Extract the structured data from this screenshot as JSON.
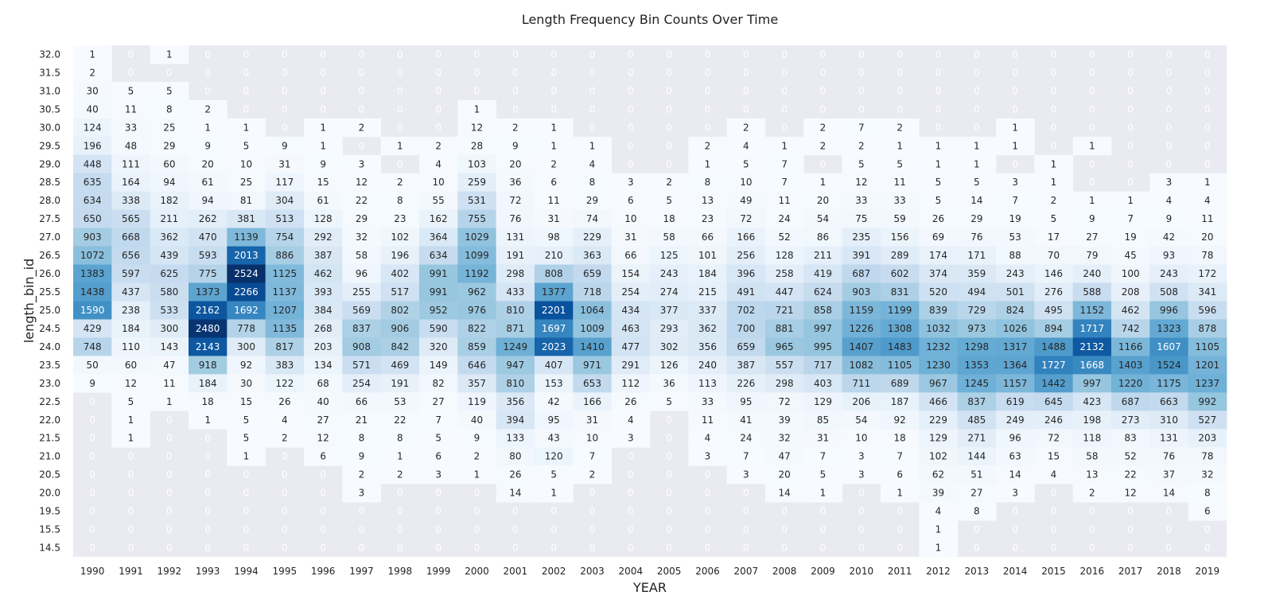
{
  "chart_data": {
    "type": "heatmap",
    "title": "Length Frequency Bin Counts Over Time",
    "xlabel": "YEAR",
    "ylabel": "length_bin_id",
    "colormap": "Blues",
    "vmin": 0,
    "vmax": 2524,
    "colors": {
      "background": "#eaeaf2",
      "low": "#f7fbff",
      "high": "#08306b",
      "text_dark": "#262626",
      "text_light": "#ffffff",
      "zero_text": "#ffffff"
    },
    "x_labels": [
      "1990",
      "1991",
      "1992",
      "1993",
      "1994",
      "1995",
      "1996",
      "1997",
      "1998",
      "1999",
      "2000",
      "2001",
      "2002",
      "2003",
      "2004",
      "2005",
      "2006",
      "2007",
      "2008",
      "2009",
      "2010",
      "2011",
      "2012",
      "2013",
      "2014",
      "2015",
      "2016",
      "2017",
      "2018",
      "2019"
    ],
    "y_labels": [
      "32.0",
      "31.5",
      "31.0",
      "30.5",
      "30.0",
      "29.5",
      "29.0",
      "28.5",
      "28.0",
      "27.5",
      "27.0",
      "26.5",
      "26.0",
      "25.5",
      "25.0",
      "24.5",
      "24.0",
      "23.5",
      "23.0",
      "22.5",
      "22.0",
      "21.5",
      "21.0",
      "20.5",
      "20.0",
      "19.5",
      "15.5",
      "14.5"
    ],
    "values": [
      [
        1,
        0,
        1,
        0,
        0,
        0,
        0,
        0,
        0,
        0,
        0,
        0,
        0,
        0,
        0,
        0,
        0,
        0,
        0,
        0,
        0,
        0,
        0,
        0,
        0,
        0,
        0,
        0,
        0,
        0
      ],
      [
        2,
        0,
        0,
        0,
        0,
        0,
        0,
        0,
        0,
        0,
        0,
        0,
        0,
        0,
        0,
        0,
        0,
        0,
        0,
        0,
        0,
        0,
        0,
        0,
        0,
        0,
        0,
        0,
        0,
        0
      ],
      [
        30,
        5,
        5,
        0,
        0,
        0,
        0,
        0,
        0,
        0,
        0,
        0,
        0,
        0,
        0,
        0,
        0,
        0,
        0,
        0,
        0,
        0,
        0,
        0,
        0,
        0,
        0,
        0,
        0,
        0
      ],
      [
        40,
        11,
        8,
        2,
        0,
        0,
        0,
        0,
        0,
        0,
        1,
        0,
        0,
        0,
        0,
        0,
        0,
        0,
        0,
        0,
        0,
        0,
        0,
        0,
        0,
        0,
        0,
        0,
        0,
        0
      ],
      [
        124,
        33,
        25,
        1,
        1,
        0,
        1,
        2,
        0,
        0,
        12,
        2,
        1,
        0,
        0,
        0,
        0,
        2,
        0,
        2,
        7,
        2,
        0,
        0,
        1,
        0,
        0,
        0,
        0,
        0
      ],
      [
        196,
        48,
        29,
        9,
        5,
        9,
        1,
        0,
        1,
        2,
        28,
        9,
        1,
        1,
        0,
        0,
        2,
        4,
        1,
        2,
        2,
        1,
        1,
        1,
        1,
        0,
        1,
        0,
        0,
        0
      ],
      [
        448,
        111,
        60,
        20,
        10,
        31,
        9,
        3,
        0,
        4,
        103,
        20,
        2,
        4,
        0,
        0,
        1,
        5,
        7,
        0,
        5,
        5,
        1,
        1,
        0,
        1,
        0,
        0,
        0,
        0
      ],
      [
        635,
        164,
        94,
        61,
        25,
        117,
        15,
        12,
        2,
        10,
        259,
        36,
        6,
        8,
        3,
        2,
        8,
        10,
        7,
        1,
        12,
        11,
        5,
        5,
        3,
        1,
        0,
        0,
        3,
        1
      ],
      [
        634,
        338,
        182,
        94,
        81,
        304,
        61,
        22,
        8,
        55,
        531,
        72,
        11,
        29,
        6,
        5,
        13,
        49,
        11,
        20,
        33,
        33,
        5,
        14,
        7,
        2,
        1,
        1,
        4,
        4
      ],
      [
        650,
        565,
        211,
        262,
        381,
        513,
        128,
        29,
        23,
        162,
        755,
        76,
        31,
        74,
        10,
        18,
        23,
        72,
        24,
        54,
        75,
        59,
        26,
        29,
        19,
        5,
        9,
        7,
        9,
        11
      ],
      [
        903,
        668,
        362,
        470,
        1139,
        754,
        292,
        32,
        102,
        364,
        1029,
        131,
        98,
        229,
        31,
        58,
        66,
        166,
        52,
        86,
        235,
        156,
        69,
        76,
        53,
        17,
        27,
        19,
        42,
        20
      ],
      [
        1072,
        656,
        439,
        593,
        2013,
        886,
        387,
        58,
        196,
        634,
        1099,
        191,
        210,
        363,
        66,
        125,
        101,
        256,
        128,
        211,
        391,
        289,
        174,
        171,
        88,
        70,
        79,
        45,
        93,
        78
      ],
      [
        1383,
        597,
        625,
        775,
        2524,
        1125,
        462,
        96,
        402,
        991,
        1192,
        298,
        808,
        659,
        154,
        243,
        184,
        396,
        258,
        419,
        687,
        602,
        374,
        359,
        243,
        146,
        240,
        100,
        243,
        172
      ],
      [
        1438,
        437,
        580,
        1373,
        2266,
        1137,
        393,
        255,
        517,
        991,
        962,
        433,
        1377,
        718,
        254,
        274,
        215,
        491,
        447,
        624,
        903,
        831,
        520,
        494,
        501,
        276,
        588,
        208,
        508,
        341
      ],
      [
        1590,
        238,
        533,
        2162,
        1692,
        1207,
        384,
        569,
        802,
        952,
        976,
        810,
        2201,
        1064,
        434,
        377,
        337,
        702,
        721,
        858,
        1159,
        1199,
        839,
        729,
        824,
        495,
        1152,
        462,
        996,
        596
      ],
      [
        429,
        184,
        300,
        2480,
        778,
        1135,
        268,
        837,
        906,
        590,
        822,
        871,
        1697,
        1009,
        463,
        293,
        362,
        700,
        881,
        997,
        1226,
        1308,
        1032,
        973,
        1026,
        894,
        1717,
        742,
        1323,
        878
      ],
      [
        748,
        110,
        143,
        2143,
        300,
        817,
        203,
        908,
        842,
        320,
        859,
        1249,
        2023,
        1410,
        477,
        302,
        356,
        659,
        965,
        995,
        1407,
        1483,
        1232,
        1298,
        1317,
        1488,
        2132,
        1166,
        1607,
        1105
      ],
      [
        50,
        60,
        47,
        918,
        92,
        383,
        134,
        571,
        469,
        149,
        646,
        947,
        407,
        971,
        291,
        126,
        240,
        387,
        557,
        717,
        1082,
        1105,
        1230,
        1353,
        1364,
        1727,
        1668,
        1403,
        1524,
        1201
      ],
      [
        9,
        12,
        11,
        184,
        30,
        122,
        68,
        254,
        191,
        82,
        357,
        810,
        153,
        653,
        112,
        36,
        113,
        226,
        298,
        403,
        711,
        689,
        967,
        1245,
        1157,
        1442,
        997,
        1220,
        1175,
        1237
      ],
      [
        0,
        5,
        1,
        18,
        15,
        26,
        40,
        66,
        53,
        27,
        119,
        356,
        42,
        166,
        26,
        5,
        33,
        95,
        72,
        129,
        206,
        187,
        466,
        837,
        619,
        645,
        423,
        687,
        663,
        992
      ],
      [
        0,
        1,
        0,
        1,
        5,
        4,
        27,
        21,
        22,
        7,
        40,
        394,
        95,
        31,
        4,
        0,
        11,
        41,
        39,
        85,
        54,
        92,
        229,
        485,
        249,
        246,
        198,
        273,
        310,
        527
      ],
      [
        0,
        1,
        0,
        0,
        5,
        2,
        12,
        8,
        8,
        5,
        9,
        133,
        43,
        10,
        3,
        0,
        4,
        24,
        32,
        31,
        10,
        18,
        129,
        271,
        96,
        72,
        118,
        83,
        131,
        203
      ],
      [
        0,
        0,
        0,
        0,
        1,
        0,
        6,
        9,
        1,
        6,
        2,
        80,
        120,
        7,
        0,
        0,
        3,
        7,
        47,
        7,
        3,
        7,
        102,
        144,
        63,
        15,
        58,
        52,
        76,
        78
      ],
      [
        0,
        0,
        0,
        0,
        0,
        0,
        0,
        2,
        2,
        3,
        1,
        26,
        5,
        2,
        0,
        0,
        0,
        3,
        20,
        5,
        3,
        6,
        62,
        51,
        14,
        4,
        13,
        22,
        37,
        32
      ],
      [
        0,
        0,
        0,
        0,
        0,
        0,
        0,
        3,
        0,
        0,
        0,
        14,
        1,
        0,
        0,
        0,
        0,
        0,
        14,
        1,
        0,
        1,
        39,
        27,
        3,
        0,
        2,
        12,
        14,
        8
      ],
      [
        0,
        0,
        0,
        0,
        0,
        0,
        0,
        0,
        0,
        0,
        0,
        0,
        0,
        0,
        0,
        0,
        0,
        0,
        0,
        0,
        0,
        0,
        4,
        8,
        0,
        0,
        0,
        0,
        0,
        6
      ],
      [
        0,
        0,
        0,
        0,
        0,
        0,
        0,
        0,
        0,
        0,
        0,
        0,
        0,
        0,
        0,
        0,
        0,
        0,
        0,
        0,
        0,
        0,
        1,
        0,
        0,
        0,
        0,
        0,
        0,
        0
      ],
      [
        0,
        0,
        0,
        0,
        0,
        0,
        0,
        0,
        0,
        0,
        0,
        0,
        0,
        0,
        0,
        0,
        0,
        0,
        0,
        0,
        0,
        0,
        1,
        0,
        0,
        0,
        0,
        0,
        0,
        0
      ]
    ],
    "annotate": true,
    "zero_cells": "masked (background shown)"
  }
}
